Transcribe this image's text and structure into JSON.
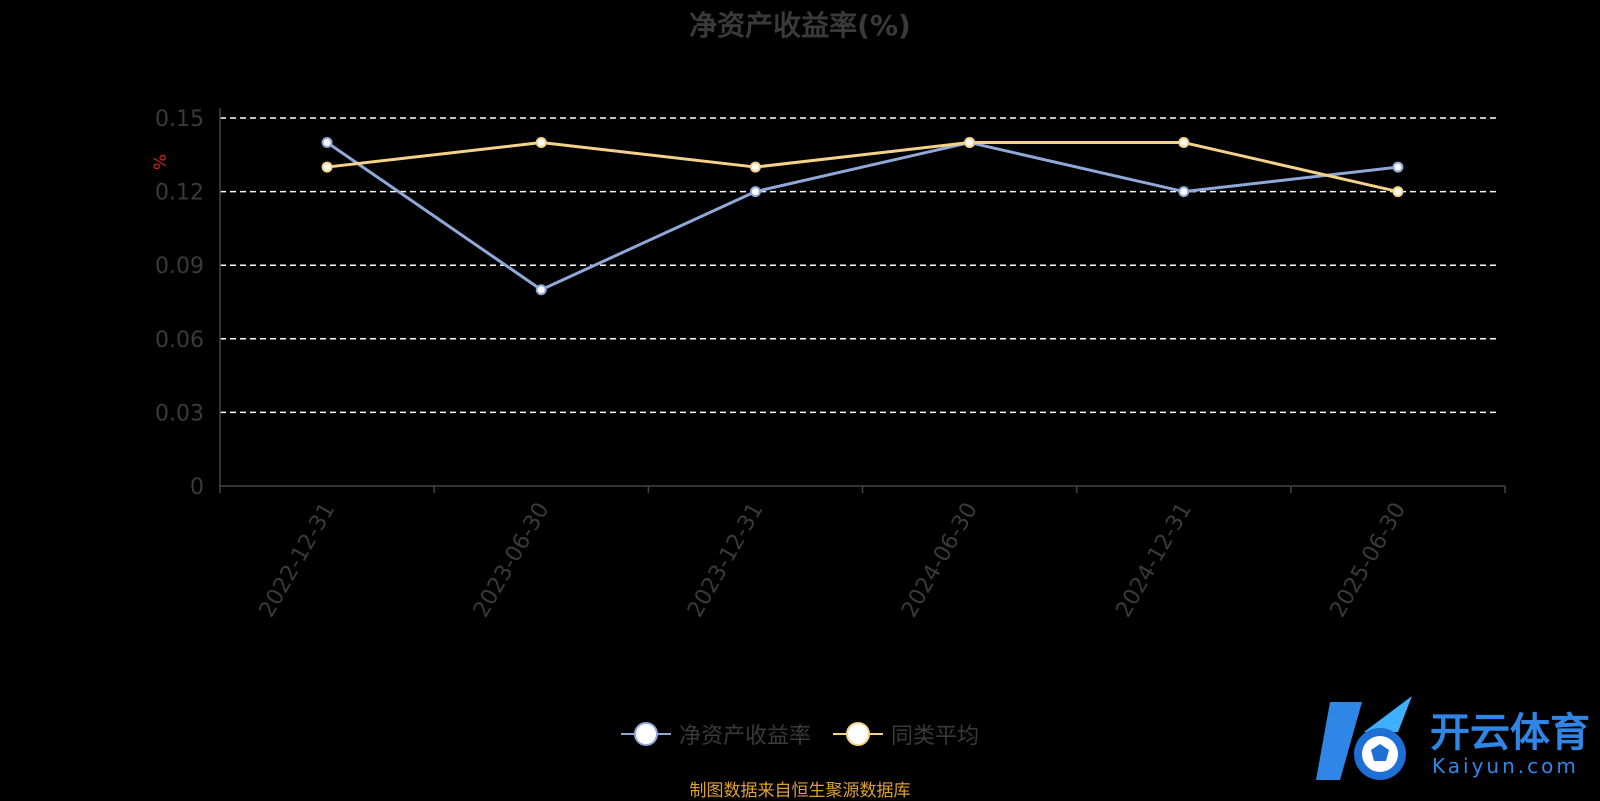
{
  "chart_data": {
    "type": "line",
    "title": "净资产收益率(%)",
    "ylabel": "%",
    "categories": [
      "2022-12-31",
      "2023-06-30",
      "2023-12-31",
      "2024-06-30",
      "2024-12-31",
      "2025-06-30"
    ],
    "ylim": [
      0,
      0.15
    ],
    "yticks": [
      "0",
      "0.03",
      "0.06",
      "0.09",
      "0.12",
      "0.15"
    ],
    "grid": true,
    "legend_position": "bottom",
    "series": [
      {
        "name": "净资产收益率",
        "values": [
          0.14,
          0.08,
          0.12,
          0.14,
          0.12,
          0.13
        ],
        "color": "#8fa8d8"
      },
      {
        "name": "同类平均",
        "values": [
          0.13,
          0.14,
          0.13,
          0.14,
          0.14,
          0.12
        ],
        "color": "#f5d28a"
      }
    ]
  },
  "source_note": "制图数据来自恒生聚源数据库",
  "watermark": {
    "brand": "开云体育",
    "domain": "Kaiyun.com",
    "color": "#2f86e6"
  }
}
